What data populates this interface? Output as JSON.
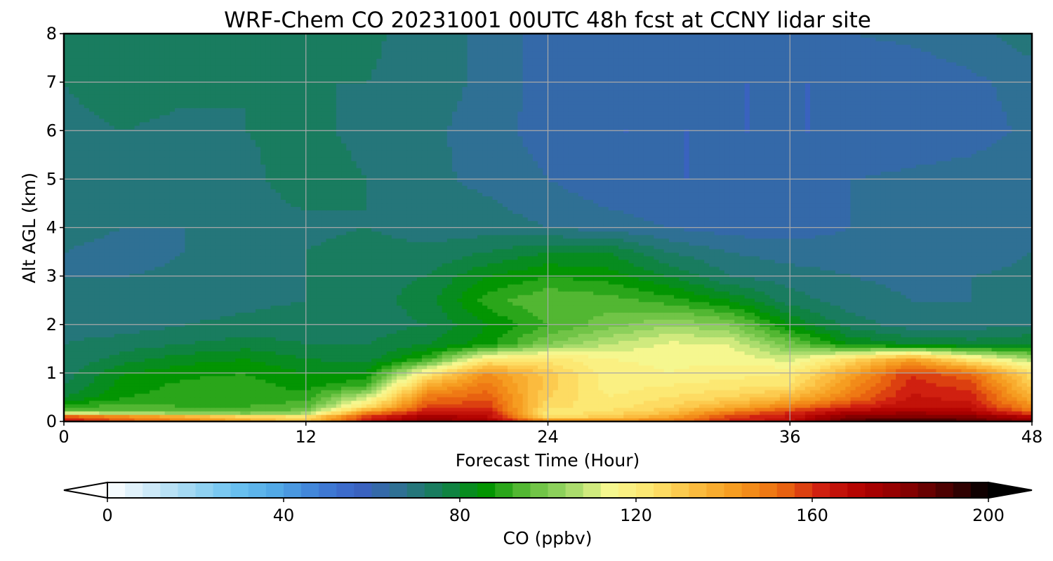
{
  "chart_data": {
    "type": "heatmap",
    "title": "WRF-Chem CO  20231001 00UTC 48h fcst at CCNY lidar site",
    "xlabel": "Forecast Time (Hour)",
    "ylabel": "Alt AGL (km)",
    "xlim": [
      0,
      48
    ],
    "ylim": [
      0,
      8
    ],
    "xticks": [
      0,
      12,
      24,
      36,
      48
    ],
    "yticks": [
      0,
      1,
      2,
      3,
      4,
      5,
      6,
      7,
      8
    ],
    "grid": true,
    "colorbar": {
      "label": "CO  (ppbv)",
      "min": 0,
      "max": 200,
      "ticks": [
        0,
        40,
        80,
        120,
        160,
        200
      ],
      "extend": "both",
      "colors": [
        "#ffffff",
        "#cfeaf8",
        "#9fd7f2",
        "#6cc3f0",
        "#52a9e6",
        "#3f80d8",
        "#3b60c4",
        "#2e7190",
        "#137f50",
        "#009400",
        "#5ebc3a",
        "#9fd868",
        "#f8f890",
        "#fde46c",
        "#fbbd40",
        "#f59a1e",
        "#ed6e10",
        "#d02010",
        "#b00000",
        "#8a0000",
        "#4a0000",
        "#000000"
      ]
    },
    "x_hours": [
      0,
      3,
      6,
      9,
      12,
      15,
      18,
      21,
      24,
      27,
      30,
      33,
      36,
      39,
      42,
      45,
      48
    ],
    "z_km": [
      0,
      0.1,
      0.2,
      0.3,
      0.5,
      0.75,
      1.0,
      1.3,
      1.6,
      2.0,
      2.5,
      3.0,
      3.5,
      4.0,
      5.0,
      6.0,
      7.0,
      8.0
    ],
    "values_ppbv": [
      [
        165,
        155,
        150,
        140,
        130,
        165,
        180,
        175,
        150,
        148,
        150,
        162,
        168,
        190,
        195,
        190,
        180
      ],
      [
        160,
        150,
        140,
        130,
        125,
        160,
        175,
        170,
        125,
        130,
        140,
        158,
        165,
        182,
        185,
        182,
        170
      ],
      [
        100,
        96,
        95,
        93,
        100,
        145,
        165,
        165,
        120,
        125,
        132,
        150,
        160,
        172,
        175,
        172,
        155
      ],
      [
        92,
        94,
        92,
        92,
        95,
        125,
        158,
        160,
        125,
        122,
        128,
        138,
        150,
        162,
        168,
        166,
        145
      ],
      [
        80,
        88,
        90,
        90,
        90,
        110,
        150,
        155,
        128,
        120,
        124,
        128,
        135,
        150,
        165,
        162,
        138
      ],
      [
        76,
        86,
        89,
        90,
        86,
        92,
        138,
        150,
        130,
        118,
        120,
        122,
        124,
        145,
        162,
        158,
        130
      ],
      [
        74,
        84,
        87,
        88,
        84,
        85,
        120,
        145,
        130,
        118,
        116,
        118,
        120,
        140,
        160,
        152,
        125
      ],
      [
        72,
        78,
        82,
        84,
        80,
        78,
        90,
        120,
        122,
        116,
        115,
        115,
        110,
        125,
        140,
        120,
        105
      ],
      [
        72,
        74,
        76,
        78,
        76,
        76,
        80,
        86,
        100,
        108,
        113,
        112,
        98,
        84,
        80,
        78,
        80
      ],
      [
        70,
        70,
        72,
        73,
        74,
        74,
        76,
        84,
        92,
        98,
        104,
        100,
        84,
        74,
        70,
        70,
        72
      ],
      [
        70,
        68,
        70,
        71,
        72,
        74,
        78,
        90,
        96,
        94,
        90,
        84,
        74,
        70,
        68,
        68,
        70
      ],
      [
        68,
        68,
        69,
        70,
        72,
        75,
        76,
        84,
        88,
        86,
        80,
        72,
        70,
        68,
        67,
        68,
        69
      ],
      [
        68,
        66,
        68,
        70,
        72,
        74,
        73,
        76,
        80,
        80,
        72,
        68,
        66,
        66,
        66,
        66,
        68
      ],
      [
        70,
        68,
        68,
        70,
        71,
        72,
        70,
        70,
        68,
        66,
        64,
        62,
        62,
        64,
        65,
        66,
        67
      ],
      [
        71,
        70,
        69,
        71,
        74,
        72,
        69,
        67,
        64,
        61,
        60,
        60,
        62,
        64,
        65,
        66,
        67
      ],
      [
        71,
        72,
        71,
        72,
        73,
        71,
        69,
        66,
        62,
        60,
        60,
        60,
        60,
        60,
        61,
        62,
        65
      ],
      [
        72,
        74,
        73,
        72,
        72,
        72,
        70,
        67,
        62,
        61,
        61,
        60,
        60,
        60,
        61,
        63,
        66
      ],
      [
        72,
        75,
        74,
        73,
        76,
        73,
        70,
        67,
        62,
        62,
        62,
        63,
        63,
        64,
        65,
        67,
        70
      ]
    ]
  }
}
